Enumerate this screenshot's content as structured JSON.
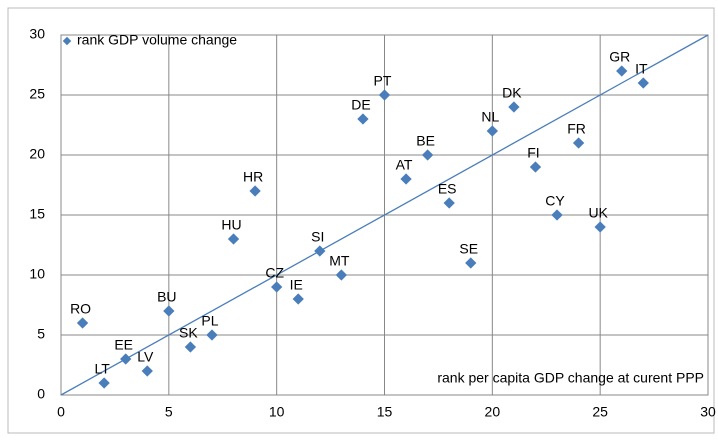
{
  "chart_data": {
    "type": "scatter",
    "x_label": "rank per capita GDP change at curent PPP",
    "xlim": [
      0,
      30
    ],
    "xticks": [
      0,
      5,
      10,
      15,
      20,
      25,
      30
    ],
    "ylim": [
      0,
      30
    ],
    "yticks": [
      0,
      5,
      10,
      15,
      20,
      25,
      30
    ],
    "grid": true,
    "legend": "top-left",
    "series": [
      {
        "name": "rank GDP volume change",
        "color": "#4a7ebb",
        "labels": [
          "RO",
          "LT",
          "EE",
          "LV",
          "BU",
          "SK",
          "PL",
          "HU",
          "HR",
          "CZ",
          "IE",
          "SI",
          "MT",
          "DE",
          "PT",
          "AT",
          "BE",
          "ES",
          "SE",
          "NL",
          "DK",
          "FI",
          "CY",
          "FR",
          "UK",
          "GR",
          "IT"
        ],
        "x": [
          1,
          2,
          3,
          4,
          5,
          6,
          7,
          8,
          9,
          10,
          11,
          12,
          13,
          14,
          15,
          16,
          17,
          18,
          19,
          20,
          21,
          22,
          23,
          24,
          25,
          26,
          27
        ],
        "values": [
          6,
          1,
          3,
          2,
          7,
          4,
          5,
          13,
          17,
          9,
          8,
          12,
          10,
          23,
          25,
          18,
          20,
          16,
          11,
          22,
          24,
          19,
          15,
          21,
          14,
          27,
          26
        ]
      }
    ],
    "trendline": {
      "color": "#4a7ebb",
      "x": [
        0,
        30
      ],
      "values": [
        0,
        30
      ]
    }
  }
}
